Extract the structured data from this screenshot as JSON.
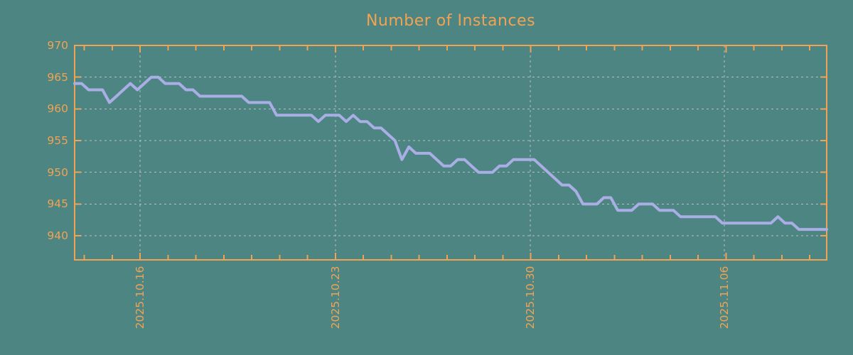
{
  "title": "Number of Instances",
  "colors": {
    "background": "#4d8582",
    "axis": "#f0a355",
    "text": "#f0a355",
    "grid": "#b9beba",
    "line": "#a9aee4"
  },
  "chart_data": {
    "type": "line",
    "title": "Number of Instances",
    "xlabel": "",
    "ylabel": "",
    "grid": true,
    "legend": "none",
    "ylim": [
      936.2,
      970
    ],
    "y_ticks": [
      940,
      945,
      950,
      955,
      960,
      965,
      970
    ],
    "x_ticks": [
      {
        "label": "2025.10.16",
        "pos": 0.087
      },
      {
        "label": "2025.10.23",
        "pos": 0.3467
      },
      {
        "label": "2025.10.30",
        "pos": 0.6059
      },
      {
        "label": "2025.11.06",
        "pos": 0.8639
      }
    ],
    "minor_x_ticks_per_interval": 7,
    "series": [
      {
        "name": "instances",
        "values": [
          964,
          964,
          963,
          963,
          963,
          961,
          962,
          963,
          964,
          963,
          964,
          965,
          965,
          964,
          964,
          964,
          963,
          963,
          962,
          962,
          962,
          962,
          962,
          962,
          962,
          961,
          961,
          961,
          961,
          959,
          959,
          959,
          959,
          959,
          959,
          958,
          959,
          959,
          959,
          958,
          959,
          958,
          958,
          957,
          957,
          956,
          955,
          952,
          954,
          953,
          953,
          953,
          952,
          951,
          951,
          952,
          952,
          951,
          950,
          950,
          950,
          951,
          951,
          952,
          952,
          952,
          952,
          951,
          950,
          949,
          948,
          948,
          947,
          945,
          945,
          945,
          946,
          946,
          944,
          944,
          944,
          945,
          945,
          945,
          944,
          944,
          944,
          943,
          943,
          943,
          943,
          943,
          943,
          942,
          942,
          942,
          942,
          942,
          942,
          942,
          942,
          943,
          942,
          942,
          941,
          941,
          941,
          941,
          941
        ]
      }
    ]
  }
}
